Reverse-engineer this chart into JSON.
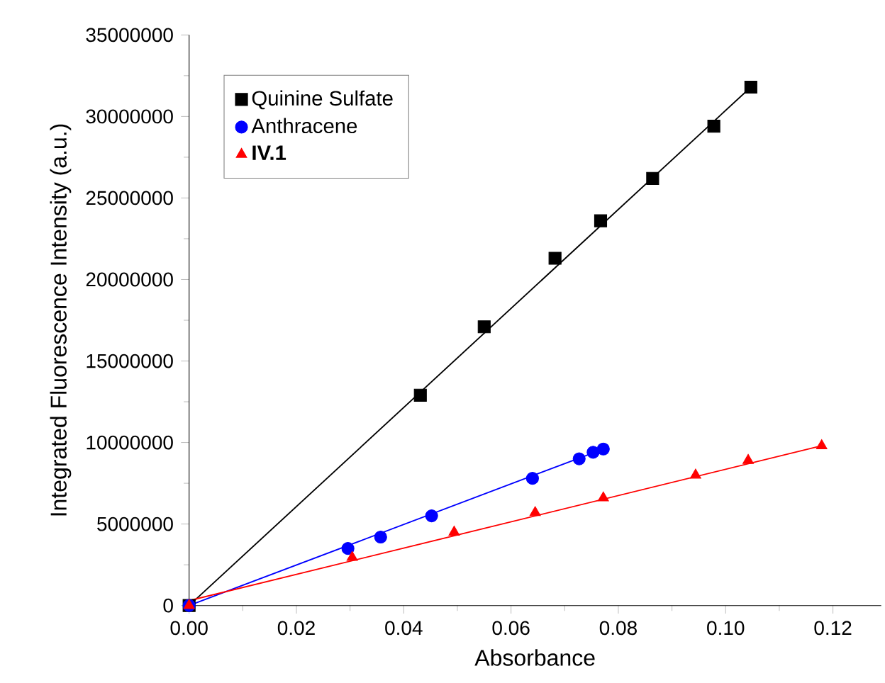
{
  "chart_data": {
    "type": "scatter",
    "xlabel": "Absorbance",
    "ylabel": "Integrated Fluorescence Intensity (a.u.)",
    "xlim": [
      0,
      0.129
    ],
    "ylim": [
      0,
      35000000
    ],
    "xticks": [
      {
        "value": 0,
        "label": "0.00"
      },
      {
        "value": 0.02,
        "label": "0.02"
      },
      {
        "value": 0.04,
        "label": "0.04"
      },
      {
        "value": 0.06,
        "label": "0.06"
      },
      {
        "value": 0.08,
        "label": "0.08"
      },
      {
        "value": 0.1,
        "label": "0.10"
      },
      {
        "value": 0.12,
        "label": "0.12"
      }
    ],
    "yticks": [
      0,
      5000000,
      10000000,
      15000000,
      20000000,
      25000000,
      30000000,
      35000000
    ],
    "legend": "top left",
    "grid": false,
    "series": [
      {
        "name": "Quinine Sulfate",
        "color": "#000000",
        "marker": "square",
        "x": [
          0,
          0.0431,
          0.055,
          0.0682,
          0.0767,
          0.0864,
          0.0978,
          0.1047
        ],
        "values": [
          0,
          12900000,
          17100000,
          21300000,
          23600000,
          26200000,
          29400000,
          31800000
        ]
      },
      {
        "name": "Anthracene",
        "color": "#0000ff",
        "marker": "circle",
        "x": [
          0,
          0.0296,
          0.0357,
          0.0452,
          0.064,
          0.0727,
          0.0753,
          0.0772
        ],
        "values": [
          0,
          3500000,
          4200000,
          5500000,
          7800000,
          9000000,
          9400000,
          9600000
        ]
      },
      {
        "name": "**IV.1**",
        "color": "#ff0000",
        "marker": "triangle",
        "x": [
          0,
          0.0304,
          0.0494,
          0.0645,
          0.0772,
          0.0944,
          0.1042,
          0.1179
        ],
        "values": [
          0,
          2950000,
          4500000,
          5700000,
          6600000,
          8000000,
          8900000,
          9800000
        ]
      },
      {
        "type": "line",
        "color": "#000000",
        "x": [
          0,
          0.1047
        ],
        "values": [
          0,
          31800000
        ]
      },
      {
        "type": "line",
        "color": "#0000ff",
        "x": [
          0,
          0.0772
        ],
        "values": [
          0,
          9600000
        ]
      },
      {
        "type": "line",
        "color": "#ff0000",
        "x": [
          0,
          0.1179
        ],
        "values": [
          300000,
          9800000
        ]
      }
    ]
  }
}
